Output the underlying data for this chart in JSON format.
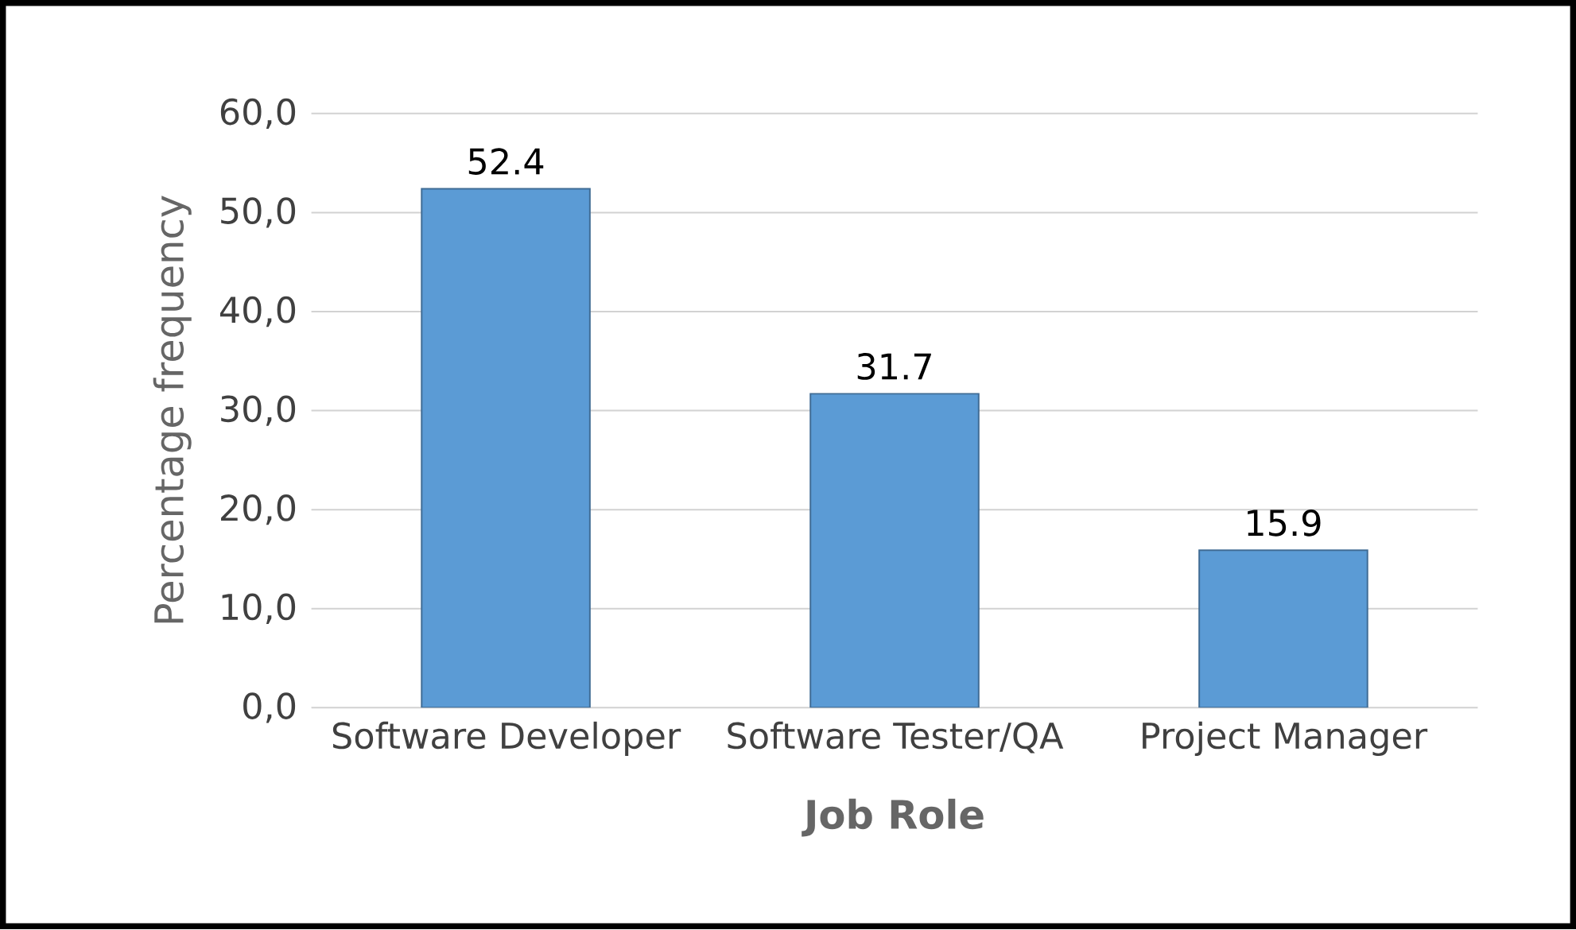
{
  "chart_data": {
    "type": "bar",
    "xlabel": "Job Role",
    "ylabel": "Percentage frequency",
    "categories": [
      "Software Developer",
      "Software Tester/QA",
      "Project Manager"
    ],
    "values": [
      52.4,
      31.7,
      15.9
    ],
    "color": "#5b9bd5",
    "data_labels": true,
    "grid": "y",
    "ylim": [
      0,
      60
    ],
    "yticks": [
      {
        "value": 0,
        "label": "0,0"
      },
      {
        "value": 10,
        "label": "10,0"
      },
      {
        "value": 20,
        "label": "20,0"
      },
      {
        "value": 30,
        "label": "30,0"
      },
      {
        "value": 40,
        "label": "40,0"
      },
      {
        "value": 50,
        "label": "50,0"
      },
      {
        "value": 60,
        "label": "60,0"
      }
    ]
  }
}
